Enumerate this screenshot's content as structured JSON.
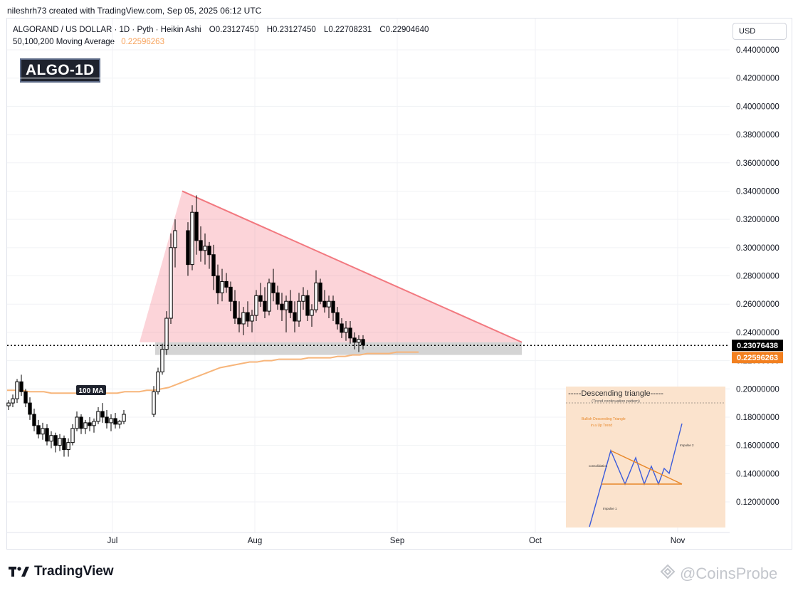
{
  "header": {
    "author_line": "nileshrh73 created with TradingView.com, Sep 05, 2025 06:12 UTC",
    "symbol": "ALGORAND / US DOLLAR · 1D · Pyth · Heikin Ashi",
    "ohlc": {
      "o": "O0.23127450",
      "h": "H0.23127450",
      "l": "L0.22708231",
      "c": "C0.22904640"
    },
    "ma_label": "50,100,200 Moving Average",
    "ma_value": "0.22596263",
    "badge": "ALGO-1D",
    "currency_button": "USD"
  },
  "footer": {
    "brand": "TradingView",
    "watermark": "@CoinsProbe"
  },
  "colors": {
    "up": "#ffffff",
    "down": "#000000",
    "triangle_fill": "rgba(244,114,129,0.30)",
    "triangle_edge": "#f2787f",
    "ma": "#f7b57a",
    "ma_tag": "#f28020",
    "support_band": "rgba(160,160,160,0.45)",
    "inset_bg": "#fbe3cd"
  },
  "chart_data": {
    "type": "candlestick",
    "style": "Heikin Ashi",
    "ylim": [
      0.1,
      0.45
    ],
    "y_ticks": [
      "0.44000000",
      "0.42000000",
      "0.40000000",
      "0.38000000",
      "0.36000000",
      "0.34000000",
      "0.32000000",
      "0.30000000",
      "0.28000000",
      "0.26000000",
      "0.24000000",
      "0.22000000",
      "0.20000000",
      "0.18000000",
      "0.16000000",
      "0.14000000",
      "0.12000000"
    ],
    "x_ticks": [
      "Jul",
      "Aug",
      "Sep",
      "Oct",
      "Nov"
    ],
    "current_price": "0.23076438",
    "ma_tag": "0.22596263",
    "ma_label": "100 MA",
    "candles": [
      [
        0.188,
        0.192,
        0.185,
        0.19
      ],
      [
        0.19,
        0.196,
        0.187,
        0.193
      ],
      [
        0.193,
        0.207,
        0.19,
        0.205
      ],
      [
        0.205,
        0.21,
        0.195,
        0.198
      ],
      [
        0.198,
        0.2,
        0.187,
        0.19
      ],
      [
        0.19,
        0.194,
        0.178,
        0.182
      ],
      [
        0.182,
        0.186,
        0.17,
        0.174
      ],
      [
        0.174,
        0.178,
        0.165,
        0.168
      ],
      [
        0.168,
        0.176,
        0.164,
        0.172
      ],
      [
        0.172,
        0.175,
        0.16,
        0.163
      ],
      [
        0.163,
        0.17,
        0.158,
        0.167
      ],
      [
        0.167,
        0.169,
        0.155,
        0.16
      ],
      [
        0.16,
        0.168,
        0.156,
        0.165
      ],
      [
        0.165,
        0.167,
        0.152,
        0.157
      ],
      [
        0.157,
        0.165,
        0.152,
        0.162
      ],
      [
        0.162,
        0.175,
        0.16,
        0.172
      ],
      [
        0.172,
        0.184,
        0.17,
        0.18
      ],
      [
        0.18,
        0.182,
        0.168,
        0.172
      ],
      [
        0.172,
        0.178,
        0.168,
        0.176
      ],
      [
        0.176,
        0.18,
        0.17,
        0.174
      ],
      [
        0.174,
        0.179,
        0.169,
        0.177
      ],
      [
        0.177,
        0.187,
        0.175,
        0.184
      ],
      [
        0.184,
        0.19,
        0.176,
        0.18
      ],
      [
        0.18,
        0.185,
        0.172,
        0.176
      ],
      [
        0.176,
        0.182,
        0.17,
        0.179
      ],
      [
        0.179,
        0.183,
        0.172,
        0.175
      ],
      [
        0.175,
        0.178,
        0.172,
        0.177
      ],
      [
        0.177,
        0.185,
        0.175,
        0.182
      ],
      [
        0.182,
        0.202,
        0.18,
        0.198
      ],
      [
        0.198,
        0.215,
        0.196,
        0.212
      ],
      [
        0.212,
        0.232,
        0.21,
        0.228
      ],
      [
        0.228,
        0.255,
        0.224,
        0.25
      ],
      [
        0.25,
        0.31,
        0.246,
        0.3
      ],
      [
        0.3,
        0.32,
        0.286,
        0.312
      ],
      [
        0.312,
        0.318,
        0.28,
        0.288
      ],
      [
        0.288,
        0.33,
        0.284,
        0.325
      ],
      [
        0.325,
        0.337,
        0.295,
        0.305
      ],
      [
        0.305,
        0.315,
        0.29,
        0.298
      ],
      [
        0.298,
        0.31,
        0.288,
        0.301
      ],
      [
        0.301,
        0.304,
        0.285,
        0.295
      ],
      [
        0.295,
        0.302,
        0.27,
        0.28
      ],
      [
        0.28,
        0.288,
        0.26,
        0.268
      ],
      [
        0.268,
        0.285,
        0.262,
        0.276
      ],
      [
        0.276,
        0.282,
        0.268,
        0.272
      ],
      [
        0.272,
        0.276,
        0.255,
        0.262
      ],
      [
        0.262,
        0.27,
        0.246,
        0.25
      ],
      [
        0.25,
        0.262,
        0.24,
        0.246
      ],
      [
        0.246,
        0.258,
        0.238,
        0.254
      ],
      [
        0.254,
        0.262,
        0.244,
        0.248
      ],
      [
        0.248,
        0.256,
        0.24,
        0.252
      ],
      [
        0.252,
        0.27,
        0.248,
        0.266
      ],
      [
        0.266,
        0.275,
        0.258,
        0.262
      ],
      [
        0.262,
        0.272,
        0.25,
        0.255
      ],
      [
        0.255,
        0.278,
        0.252,
        0.275
      ],
      [
        0.275,
        0.285,
        0.262,
        0.268
      ],
      [
        0.268,
        0.273,
        0.256,
        0.26
      ],
      [
        0.26,
        0.268,
        0.248,
        0.256
      ],
      [
        0.256,
        0.266,
        0.24,
        0.262
      ],
      [
        0.262,
        0.27,
        0.25,
        0.254
      ],
      [
        0.254,
        0.262,
        0.24,
        0.248
      ],
      [
        0.248,
        0.268,
        0.244,
        0.262
      ],
      [
        0.262,
        0.272,
        0.256,
        0.266
      ],
      [
        0.266,
        0.27,
        0.248,
        0.252
      ],
      [
        0.252,
        0.26,
        0.244,
        0.256
      ],
      [
        0.256,
        0.284,
        0.254,
        0.275
      ],
      [
        0.275,
        0.278,
        0.26,
        0.262
      ],
      [
        0.262,
        0.27,
        0.254,
        0.258
      ],
      [
        0.258,
        0.266,
        0.25,
        0.262
      ],
      [
        0.262,
        0.266,
        0.248,
        0.254
      ],
      [
        0.254,
        0.258,
        0.242,
        0.246
      ],
      [
        0.246,
        0.25,
        0.236,
        0.24
      ],
      [
        0.24,
        0.248,
        0.234,
        0.243
      ],
      [
        0.243,
        0.248,
        0.232,
        0.236
      ],
      [
        0.236,
        0.24,
        0.228,
        0.233
      ],
      [
        0.233,
        0.238,
        0.226,
        0.235
      ],
      [
        0.235,
        0.238,
        0.228,
        0.231
      ]
    ],
    "moving_average_100": [
      0.199,
      0.199,
      0.199,
      0.198,
      0.198,
      0.198,
      0.197,
      0.197,
      0.197,
      0.197,
      0.197,
      0.197,
      0.197,
      0.197,
      0.197,
      0.197,
      0.198,
      0.198,
      0.198,
      0.199,
      0.199,
      0.2,
      0.201,
      0.203,
      0.205,
      0.207,
      0.209,
      0.211,
      0.213,
      0.215,
      0.216,
      0.217,
      0.218,
      0.219,
      0.219,
      0.22,
      0.22,
      0.221,
      0.221,
      0.221,
      0.221,
      0.222,
      0.222,
      0.222,
      0.222,
      0.223,
      0.223,
      0.224,
      0.224,
      0.225,
      0.225,
      0.225,
      0.225,
      0.226,
      0.226,
      0.226,
      0.226
    ],
    "triangle": {
      "apex_date_idx": 37,
      "apex_price": 0.34,
      "end_price": 0.233,
      "base_price": 0.233
    },
    "support_band": [
      0.224,
      0.233
    ],
    "inset": {
      "title": "-----Descending triangle-----",
      "subtitle": "(Trend continuation pattern)",
      "label_pattern": "Bullish Descending Triangle",
      "label_trend": "in a Up Trend",
      "label_consolidation": "consolidation",
      "label_impulse1": "Impulse 1",
      "label_impulse2": "Impulse 2"
    }
  }
}
